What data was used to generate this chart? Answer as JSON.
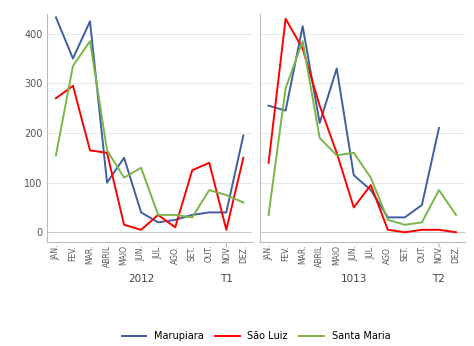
{
  "months": [
    "JAN.",
    "FEV.",
    "MAR.",
    "ABRIL",
    "MAIO",
    "JUN.",
    "JUL.",
    "AGO.",
    "SET.",
    "OUT.",
    "NOV.",
    "DEZ."
  ],
  "marupiara_t1": [
    433,
    350,
    425,
    100,
    150,
    40,
    20,
    25,
    35,
    40,
    40,
    195
  ],
  "sao_luiz_t1": [
    270,
    295,
    165,
    160,
    15,
    5,
    35,
    10,
    125,
    140,
    5,
    150
  ],
  "santa_maria_t1": [
    155,
    335,
    385,
    165,
    110,
    130,
    35,
    35,
    30,
    85,
    75,
    60
  ],
  "marupiara_t2": [
    255,
    245,
    415,
    220,
    330,
    115,
    85,
    30,
    30,
    55,
    210,
    null
  ],
  "sao_luiz_t2": [
    140,
    430,
    370,
    255,
    160,
    50,
    95,
    5,
    0,
    5,
    5,
    0
  ],
  "santa_maria_t2": [
    35,
    290,
    385,
    190,
    155,
    160,
    110,
    25,
    15,
    20,
    85,
    35
  ],
  "color_marupiara": "#3F5FA0",
  "color_sao_luiz": "#FF0000",
  "color_santa_maria": "#7AB648",
  "ylim": [
    -20,
    440
  ],
  "yticks": [
    0,
    100,
    200,
    300,
    400
  ],
  "label_2012": "2012",
  "label_1013": "1013",
  "label_T1": "T1",
  "label_T2": "T2",
  "legend_marupiara": "Marupiara",
  "legend_sao_luiz": "São Luiz",
  "legend_santa_maria": "Santa Maria"
}
